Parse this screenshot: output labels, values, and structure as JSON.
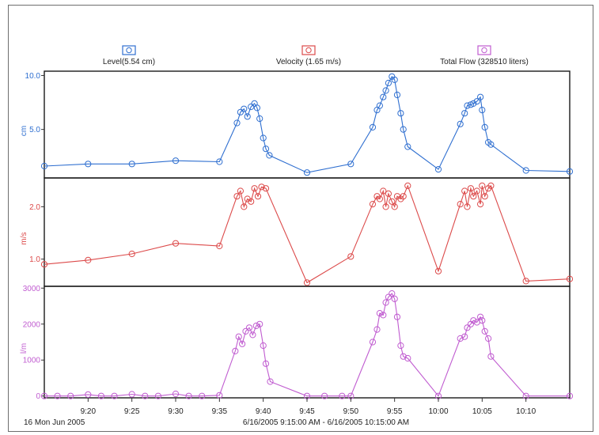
{
  "chart_data": {
    "type": "line",
    "legend": [
      {
        "label": "Level(5.54 cm)",
        "color": "#2f6fd0"
      },
      {
        "label": "Velocity (1.65 m/s)",
        "color": "#dc4a4a"
      },
      {
        "label": "Total Flow (328510 liters)",
        "color": "#c05cd0"
      }
    ],
    "x_tick_labels": [
      "9:20",
      "9:25",
      "9:30",
      "9:35",
      "9:40",
      "9:45",
      "9:50",
      "9:55",
      "10:00",
      "10:05",
      "10:10"
    ],
    "x_tick_minutes": [
      20,
      25,
      30,
      35,
      40,
      45,
      50,
      55,
      60,
      65,
      70
    ],
    "xlim": [
      15,
      75
    ],
    "footer_left": "16 Mon Jun 2005",
    "footer_range": "6/16/2005 9:15:00 AM - 6/16/2005 10:15:00 AM",
    "panels": [
      {
        "name": "Level",
        "ylabel": "cm",
        "color": "#2f6fd0",
        "ylim": [
          0.5,
          10.4
        ],
        "ticks": [
          5.0,
          10.0
        ],
        "tick_labels": [
          "5.0",
          "10.0"
        ],
        "x": [
          15,
          20,
          25,
          30,
          35,
          37,
          37.4,
          37.8,
          38.2,
          38.6,
          39,
          39.3,
          39.6,
          40,
          40.3,
          40.7,
          45,
          50,
          52.5,
          53,
          53.3,
          53.7,
          54,
          54.3,
          54.7,
          55,
          55.3,
          55.7,
          56,
          56.5,
          60,
          62.5,
          63,
          63.3,
          63.7,
          64,
          64.4,
          64.8,
          65,
          65.3,
          65.7,
          66,
          70,
          75
        ],
        "y": [
          1.6,
          1.8,
          1.8,
          2.1,
          2.0,
          5.6,
          6.6,
          6.9,
          6.2,
          7.1,
          7.4,
          7.0,
          6.0,
          4.2,
          3.2,
          2.6,
          1.0,
          1.8,
          5.2,
          6.8,
          7.2,
          8.0,
          8.6,
          9.3,
          9.9,
          9.6,
          8.2,
          6.5,
          5.0,
          3.4,
          1.3,
          5.5,
          6.5,
          7.2,
          7.3,
          7.4,
          7.6,
          8.0,
          6.8,
          5.2,
          3.8,
          3.6,
          1.2,
          1.1
        ]
      },
      {
        "name": "Velocity",
        "ylabel": "m/s",
        "color": "#dc4a4a",
        "ylim": [
          0.48,
          2.55
        ],
        "ticks": [
          1.0,
          2.0
        ],
        "tick_labels": [
          "1.0",
          "2.0"
        ],
        "x": [
          15,
          20,
          25,
          30,
          35,
          37,
          37.4,
          37.8,
          38.2,
          38.6,
          39,
          39.4,
          39.8,
          40.3,
          45,
          50,
          52.5,
          53,
          53.3,
          53.7,
          54,
          54.3,
          54.7,
          55,
          55.3,
          55.7,
          56,
          56.5,
          60,
          62.5,
          63,
          63.3,
          63.7,
          64,
          64.4,
          64.8,
          65,
          65.3,
          65.7,
          66,
          70,
          75
        ],
        "y": [
          0.9,
          0.98,
          1.1,
          1.3,
          1.25,
          2.2,
          2.3,
          2.0,
          2.15,
          2.1,
          2.35,
          2.2,
          2.38,
          2.35,
          0.55,
          1.05,
          2.05,
          2.2,
          2.15,
          2.3,
          2.0,
          2.25,
          2.1,
          2.0,
          2.2,
          2.15,
          2.2,
          2.4,
          0.77,
          2.05,
          2.3,
          2.0,
          2.35,
          2.2,
          2.3,
          2.05,
          2.4,
          2.2,
          2.35,
          2.4,
          0.58,
          0.62
        ]
      },
      {
        "name": "Total Flow",
        "ylabel": "l/m",
        "color": "#c05cd0",
        "ylim": [
          -50,
          3050
        ],
        "ticks": [
          0,
          1000,
          2000,
          3000
        ],
        "tick_labels": [
          "0",
          "1000",
          "2000",
          "3000"
        ],
        "x": [
          15,
          16.5,
          18,
          20,
          21.5,
          23,
          25,
          26.5,
          28,
          30,
          31.5,
          33,
          35,
          36.8,
          37.2,
          37.6,
          38,
          38.4,
          38.8,
          39.2,
          39.6,
          40,
          40.3,
          40.8,
          45,
          47,
          49,
          50,
          52.5,
          53,
          53.3,
          53.7,
          54,
          54.3,
          54.7,
          55,
          55.3,
          55.7,
          56,
          56.5,
          60,
          62.5,
          63,
          63.3,
          63.7,
          64,
          64.4,
          64.8,
          65,
          65.3,
          65.7,
          66,
          70,
          75
        ],
        "y": [
          0,
          0,
          0,
          40,
          0,
          0,
          50,
          0,
          0,
          60,
          0,
          0,
          20,
          1250,
          1650,
          1450,
          1800,
          1900,
          1700,
          1950,
          2000,
          1400,
          900,
          400,
          0,
          0,
          0,
          0,
          1500,
          1850,
          2300,
          2250,
          2600,
          2750,
          2850,
          2700,
          2200,
          1400,
          1100,
          1050,
          0,
          1600,
          1650,
          1900,
          2000,
          2100,
          2050,
          2200,
          2100,
          1800,
          1600,
          1100,
          0,
          0
        ]
      }
    ]
  }
}
